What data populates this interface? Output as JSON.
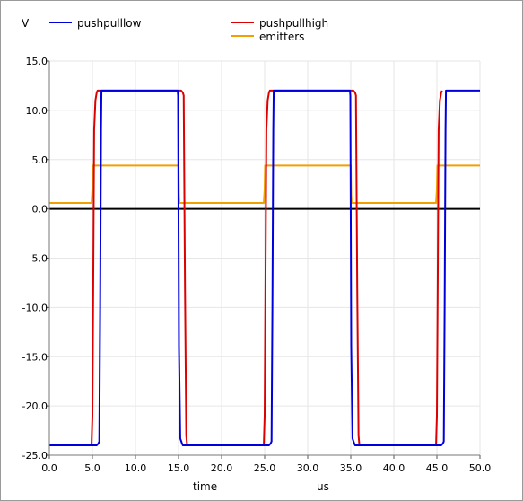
{
  "chart_data": {
    "type": "line",
    "ylabel": "V",
    "xlabel": "time",
    "xunit": "us",
    "xlim": [
      0,
      50
    ],
    "ylim": [
      -25,
      15
    ],
    "xticks": [
      0,
      5,
      10,
      15,
      20,
      25,
      30,
      35,
      40,
      45,
      50
    ],
    "yticks": [
      15,
      10,
      5,
      0,
      -5,
      -10,
      -15,
      -20,
      -25
    ],
    "xtick_labels": [
      "0.0",
      "5.0",
      "10.0",
      "15.0",
      "20.0",
      "25.0",
      "30.0",
      "35.0",
      "40.0",
      "45.0",
      "50.0"
    ],
    "ytick_labels": [
      "15.0",
      "10.0",
      "5.0",
      "0.0",
      "-5.0",
      "-10.0",
      "-15.0",
      "-20.0",
      "-25.0"
    ],
    "grid": true,
    "zero_line": true,
    "legend_placement": "top",
    "series": [
      {
        "name": "pushpulllow",
        "color": "#0000dd",
        "x": [
          0,
          5.5,
          5.7,
          5.8,
          5.9,
          6.0,
          6.05,
          14.9,
          14.95,
          15.05,
          15.2,
          15.4,
          15.5,
          25.5,
          25.7,
          25.8,
          25.9,
          26.0,
          26.05,
          34.9,
          34.95,
          35.05,
          35.2,
          35.4,
          35.5,
          45.5,
          45.7,
          45.8,
          45.9,
          46.0,
          46.05,
          50
        ],
        "y": [
          -24,
          -24,
          -23.8,
          -23.6,
          -10,
          8,
          12,
          12,
          11.5,
          -14,
          -23.3,
          -23.8,
          -24,
          -24,
          -23.8,
          -23.6,
          -10,
          8,
          12,
          12,
          11.5,
          -14,
          -23.3,
          -23.8,
          -24,
          -24,
          -23.8,
          -23.6,
          -10,
          8,
          12,
          12
        ]
      },
      {
        "name": "pushpullhigh",
        "color": "#dd0000",
        "x": [
          0,
          4.9,
          5.0,
          5.1,
          5.2,
          5.35,
          5.5,
          5.6,
          15.3,
          15.5,
          15.6,
          15.75,
          15.9,
          16.0,
          24.9,
          25.0,
          25.1,
          25.2,
          25.35,
          25.5,
          25.6,
          35.3,
          35.5,
          35.6,
          35.75,
          35.9,
          36.0,
          44.9,
          45.0,
          45.1,
          45.2,
          45.35,
          45.5,
          45.6
        ],
        "y": [
          -24,
          -24,
          -21,
          -7,
          8,
          11,
          11.8,
          12,
          12,
          11.8,
          11.5,
          -8,
          -23,
          -24,
          -24,
          -21,
          -7,
          8,
          11,
          11.8,
          12,
          12,
          11.8,
          11.5,
          -8,
          -23,
          -24,
          -24,
          -21,
          -7,
          8,
          11,
          11.8,
          12
        ]
      },
      {
        "name": "emitters",
        "color": "#f0a000",
        "x": [
          0,
          4.9,
          5.0,
          5.05,
          15.0,
          15.05,
          15.1,
          24.9,
          25.0,
          25.05,
          35.0,
          35.05,
          35.1,
          44.9,
          45.0,
          45.05,
          50
        ],
        "y": [
          0.6,
          0.6,
          2,
          4.4,
          4.4,
          1.5,
          0.6,
          0.6,
          2,
          4.4,
          4.4,
          1.5,
          0.6,
          0.6,
          2,
          4.4,
          4.4
        ]
      }
    ]
  }
}
